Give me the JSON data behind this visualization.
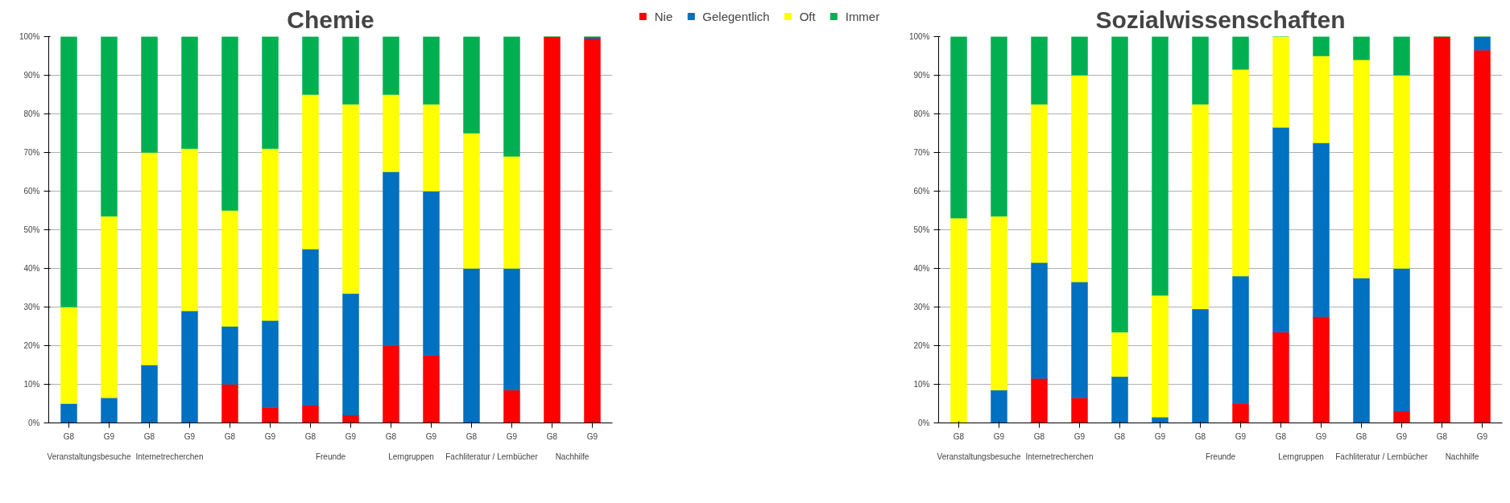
{
  "chart_data": [
    {
      "type": "bar",
      "title": "Chemie",
      "stacked": true,
      "grid": "y",
      "legend": "top right",
      "categories": [
        "G8",
        "G9",
        "G8",
        "G9",
        "G8",
        "G9",
        "G8",
        "G9",
        "G8",
        "G9",
        "G8",
        "G9",
        "G8",
        "G9"
      ],
      "annotations": [
        "Veranstaltungsbesuche",
        "Internetrecherchen",
        null,
        "Freunde",
        "Lerngruppen",
        "Fachliteratur / Lernbücher",
        "Nachhilfe"
      ],
      "ylim": [
        0,
        100
      ],
      "yticks": [
        {
          "value": 0,
          "label": "0%"
        },
        {
          "value": 10,
          "label": "10%"
        },
        {
          "value": 20,
          "label": "20%"
        },
        {
          "value": 30,
          "label": "30%"
        },
        {
          "value": 40,
          "label": "40%"
        },
        {
          "value": 50,
          "label": "50%"
        },
        {
          "value": 60,
          "label": "60%"
        },
        {
          "value": 70,
          "label": "70%"
        },
        {
          "value": 80,
          "label": "80%"
        },
        {
          "value": 90,
          "label": "90%"
        },
        {
          "value": 100,
          "label": "100%"
        }
      ],
      "series": [
        {
          "name": "Nie",
          "color": "#ff0000",
          "values": [
            0,
            0,
            0,
            0,
            10,
            4,
            4.5,
            2,
            20,
            17.5,
            0,
            8.5,
            100,
            99.5
          ]
        },
        {
          "name": "Gelegentlich",
          "color": "#0070c0",
          "values": [
            5,
            6.5,
            15,
            29,
            15,
            22.5,
            40.5,
            31.5,
            45,
            42.5,
            40,
            31.5,
            0,
            0.5
          ]
        },
        {
          "name": "Oft",
          "color": "#ffff00",
          "values": [
            25,
            47,
            55,
            42,
            30,
            44.5,
            40,
            49,
            20,
            22.5,
            35,
            29,
            0,
            0
          ]
        },
        {
          "name": "Immer",
          "color": "#00b050",
          "values": [
            70,
            46.5,
            30,
            29,
            45,
            29,
            15,
            17.5,
            15,
            17.5,
            25,
            31,
            0,
            0
          ]
        }
      ]
    },
    {
      "type": "bar",
      "title": "Sozialwissenschaften",
      "stacked": true,
      "grid": "y",
      "categories": [
        "G8",
        "G9",
        "G8",
        "G9",
        "G8",
        "G9",
        "G8",
        "G9",
        "G8",
        "G9",
        "G8",
        "G9",
        "G8",
        "G9"
      ],
      "annotations": [
        "Veranstaltungsbesuche",
        "Internetrecherchen",
        null,
        "Freunde",
        "Lerngruppen",
        "Fachliteratur / Lernbücher",
        "Nachhilfe"
      ],
      "ylim": [
        0,
        100
      ],
      "yticks": [
        {
          "value": 0,
          "label": "0%"
        },
        {
          "value": 10,
          "label": "10%"
        },
        {
          "value": 20,
          "label": "20%"
        },
        {
          "value": 30,
          "label": "30%"
        },
        {
          "value": 40,
          "label": "40%"
        },
        {
          "value": 50,
          "label": "50%"
        },
        {
          "value": 60,
          "label": "60%"
        },
        {
          "value": 70,
          "label": "70%"
        },
        {
          "value": 80,
          "label": "80%"
        },
        {
          "value": 90,
          "label": "90%"
        },
        {
          "value": 100,
          "label": "100%"
        }
      ],
      "series": [
        {
          "color": "#ff0000",
          "values": [
            0,
            0,
            11.5,
            6.5,
            0,
            0,
            0,
            5,
            23.5,
            27.5,
            0,
            3,
            100,
            96.5
          ]
        },
        {
          "color": "#0070c0",
          "values": [
            0,
            8.5,
            30,
            30,
            12,
            1.5,
            29.5,
            33,
            53,
            45,
            37.5,
            37,
            0,
            3.5
          ]
        },
        {
          "color": "#ffff00",
          "values": [
            53,
            45,
            41,
            53.5,
            11.5,
            31.5,
            53,
            53.5,
            23.5,
            22.5,
            56.5,
            50,
            0,
            0
          ]
        },
        {
          "color": "#00b050",
          "values": [
            47,
            46.5,
            17.5,
            10,
            76.5,
            67,
            17.5,
            8.5,
            0,
            5,
            6,
            10,
            0,
            0
          ]
        }
      ]
    }
  ]
}
